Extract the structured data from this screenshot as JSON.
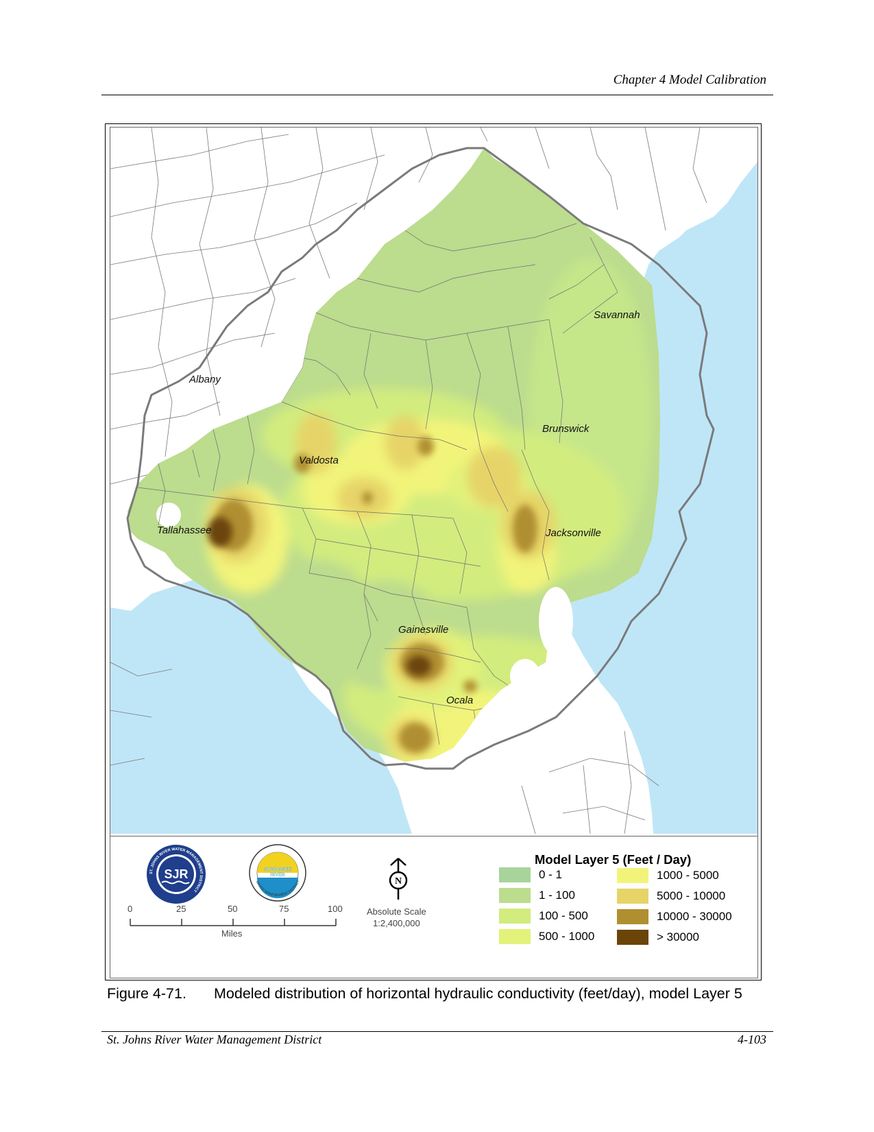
{
  "header": {
    "chapter": "Chapter 4 Model Calibration"
  },
  "map": {
    "cities": [
      {
        "name": "Savannah"
      },
      {
        "name": "Albany"
      },
      {
        "name": "Brunswick"
      },
      {
        "name": "Valdosta"
      },
      {
        "name": "Tallahassee"
      },
      {
        "name": "Jacksonville"
      },
      {
        "name": "Gainesville"
      },
      {
        "name": "Ocala"
      }
    ],
    "colors": {
      "water": "#bfe6f7",
      "land": "#ffffff",
      "boundary": "#7a7a7a",
      "county": "#6e6e6e"
    }
  },
  "legend": {
    "title": "Model Layer 5  (Feet / Day)",
    "classes": [
      {
        "label": "0 - 1",
        "color": "#a8d49b"
      },
      {
        "label": "1 - 100",
        "color": "#bcdc8e"
      },
      {
        "label": "100 - 500",
        "color": "#d2ec7e"
      },
      {
        "label": "500 - 1000",
        "color": "#e2f27a"
      },
      {
        "label": "1000 - 5000",
        "color": "#f2f47a"
      },
      {
        "label": "5000 - 10000",
        "color": "#e6d468"
      },
      {
        "label": "10000 - 30000",
        "color": "#b08f30"
      },
      {
        "label": "> 30000",
        "color": "#6b4408"
      }
    ]
  },
  "logos": {
    "sjr": {
      "ring_text": "ST. JOHNS RIVER WATER MANAGEMENT DISTRICT",
      "letters": "SJR"
    },
    "srwmd": {
      "ring_text": "WATER MANAGEMENT DISTRICT",
      "name_line1": "SUWANNEE",
      "name_line2": "RIVER"
    }
  },
  "north_arrow": {
    "letter": "N"
  },
  "scale": {
    "ticks": [
      "0",
      "25",
      "50",
      "75",
      "100"
    ],
    "unit": "Miles",
    "absolute_label": "Absolute Scale",
    "absolute_ratio": "1:2,400,000"
  },
  "caption": {
    "number": "Figure 4-71.",
    "text": "Modeled distribution of horizontal hydraulic conductivity (feet/day), model Layer 5"
  },
  "footer": {
    "left": "St. Johns River Water Management District",
    "right": "4-103"
  }
}
